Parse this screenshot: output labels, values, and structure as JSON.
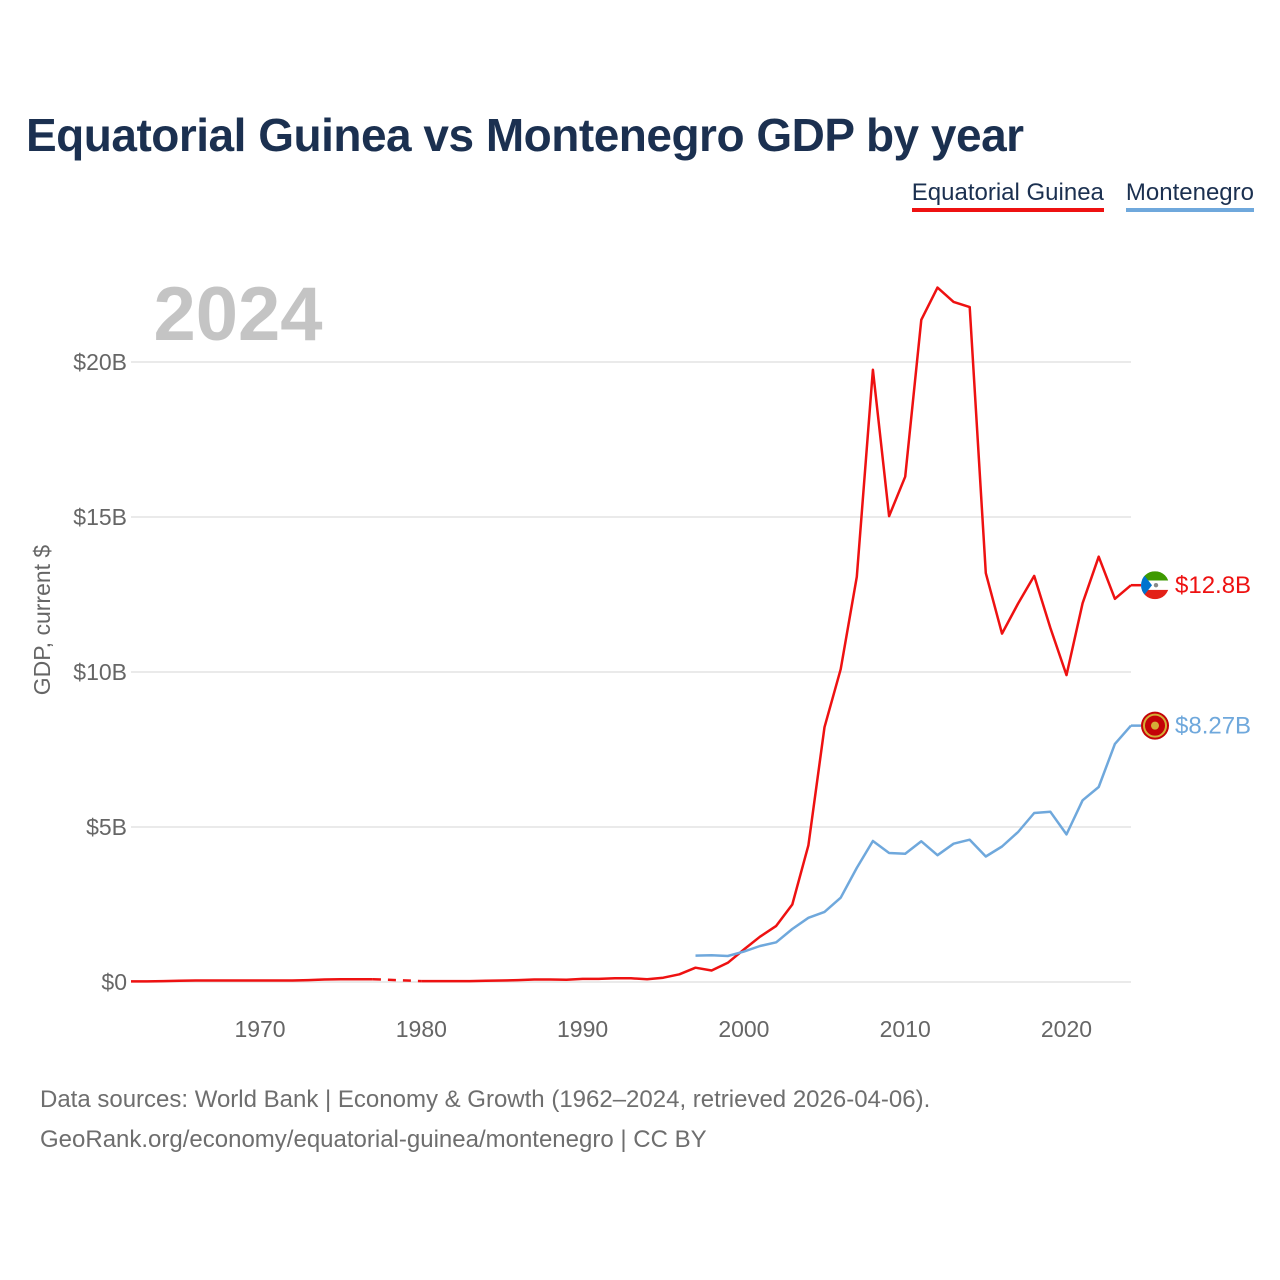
{
  "title": "Equatorial Guinea vs Montenegro GDP by year",
  "legend": [
    {
      "label": "Equatorial Guinea",
      "color": "#ee1111"
    },
    {
      "label": "Montenegro",
      "color": "#6fa8dc"
    }
  ],
  "year_watermark": "2024",
  "footer": {
    "line1": "Data sources: World Bank | Economy & Growth (1962–2024, retrieved 2026-04-06).",
    "line2": "GeoRank.org/economy/equatorial-guinea/montenegro | CC BY"
  },
  "chart_data": {
    "type": "line",
    "title": "Equatorial Guinea vs Montenegro GDP by year",
    "xlabel": "",
    "ylabel": "GDP, current $",
    "xlim": [
      1962,
      2024
    ],
    "ylim": [
      0,
      23
    ],
    "y_unit": "billion US$",
    "yticks": [
      0,
      5,
      10,
      15,
      20
    ],
    "ytick_labels": [
      "$0",
      "$5B",
      "$10B",
      "$15B",
      "$20B"
    ],
    "xticks": [
      1970,
      1980,
      1990,
      2000,
      2010,
      2020
    ],
    "xtick_labels": [
      "1970",
      "1980",
      "1990",
      "2000",
      "2010",
      "2020"
    ],
    "grid": true,
    "legend_position": "top-right",
    "series": [
      {
        "name": "Equatorial Guinea",
        "color": "#ee1111",
        "end_label": "$12.8B",
        "gap": [
          1977,
          1980
        ],
        "x": [
          1962,
          1963,
          1964,
          1965,
          1966,
          1967,
          1968,
          1969,
          1970,
          1971,
          1972,
          1973,
          1974,
          1975,
          1976,
          1977,
          1980,
          1981,
          1982,
          1983,
          1984,
          1985,
          1986,
          1987,
          1988,
          1989,
          1990,
          1991,
          1992,
          1993,
          1994,
          1995,
          1996,
          1997,
          1998,
          1999,
          2000,
          2001,
          2002,
          2003,
          2004,
          2005,
          2006,
          2007,
          2008,
          2009,
          2010,
          2011,
          2012,
          2013,
          2014,
          2015,
          2016,
          2017,
          2018,
          2019,
          2020,
          2021,
          2022,
          2023,
          2024
        ],
        "values": [
          0.02,
          0.02,
          0.03,
          0.04,
          0.05,
          0.05,
          0.05,
          0.05,
          0.05,
          0.05,
          0.05,
          0.06,
          0.08,
          0.09,
          0.09,
          0.09,
          0.03,
          0.03,
          0.03,
          0.03,
          0.04,
          0.05,
          0.06,
          0.08,
          0.08,
          0.07,
          0.1,
          0.1,
          0.12,
          0.12,
          0.09,
          0.14,
          0.25,
          0.46,
          0.37,
          0.62,
          1.05,
          1.46,
          1.81,
          2.5,
          4.41,
          8.22,
          10.09,
          13.07,
          19.75,
          15.03,
          16.3,
          21.36,
          22.4,
          21.94,
          21.77,
          13.19,
          11.24,
          12.21,
          13.1,
          11.42,
          9.9,
          12.22,
          13.72,
          12.36,
          12.8
        ]
      },
      {
        "name": "Montenegro",
        "color": "#6fa8dc",
        "end_label": "$8.27B",
        "x": [
          1997,
          1998,
          1999,
          2000,
          2001,
          2002,
          2003,
          2004,
          2005,
          2006,
          2007,
          2008,
          2009,
          2010,
          2011,
          2012,
          2013,
          2014,
          2015,
          2016,
          2017,
          2018,
          2019,
          2020,
          2021,
          2022,
          2023,
          2024
        ],
        "values": [
          0.85,
          0.86,
          0.84,
          0.98,
          1.16,
          1.28,
          1.71,
          2.07,
          2.26,
          2.72,
          3.68,
          4.55,
          4.16,
          4.14,
          4.54,
          4.09,
          4.46,
          4.59,
          4.05,
          4.37,
          4.84,
          5.45,
          5.49,
          4.76,
          5.86,
          6.29,
          7.68,
          8.27
        ]
      }
    ]
  }
}
